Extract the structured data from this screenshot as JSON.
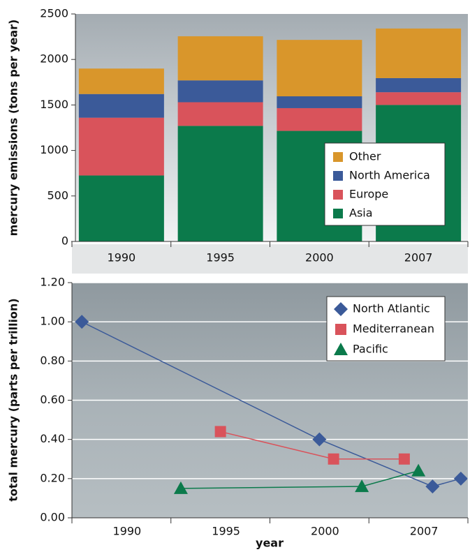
{
  "chart_data": [
    {
      "type": "bar",
      "stacked": true,
      "ylabel": "mercury emissions (tons per year)",
      "categories": [
        "1990",
        "1995",
        "2000",
        "2007"
      ],
      "series": [
        {
          "name": "Asia",
          "color": "#0b7a4b",
          "values": [
            725,
            1270,
            1215,
            1500
          ]
        },
        {
          "name": "Europe",
          "color": "#d9535b",
          "values": [
            635,
            260,
            250,
            140
          ]
        },
        {
          "name": "North America",
          "color": "#3b5a99",
          "values": [
            260,
            240,
            130,
            155
          ]
        },
        {
          "name": "Other",
          "color": "#d9962b",
          "values": [
            280,
            485,
            620,
            545
          ]
        }
      ],
      "ylim": [
        0,
        2500
      ],
      "yticks": [
        0,
        500,
        1000,
        1500,
        2000,
        2500
      ],
      "legend": "lower right"
    },
    {
      "type": "line",
      "ylabel": "total mercury (parts per trillion)",
      "xlabel": "year",
      "series": [
        {
          "name": "North Atlantic",
          "color": "#3b5a99",
          "marker": "diamond",
          "x": [
            1988,
            2000,
            2008,
            2010
          ],
          "values": [
            1.0,
            0.4,
            0.16,
            0.2
          ]
        },
        {
          "name": "Mediterranean",
          "color": "#d9535b",
          "marker": "square",
          "x": [
            1995,
            2001,
            2006
          ],
          "values": [
            0.44,
            0.3,
            0.3
          ]
        },
        {
          "name": "Pacific",
          "color": "#0b7a4b",
          "marker": "triangle",
          "x": [
            1993,
            2003,
            2007
          ],
          "values": [
            0.15,
            0.16,
            0.24
          ]
        }
      ],
      "xlim": [
        1987.5,
        2010.5
      ],
      "xticks": [
        1990,
        1995,
        2000,
        2007
      ],
      "ylim": [
        0,
        1.2
      ],
      "yticks": [
        {
          "value": 0,
          "label": "0.00"
        },
        {
          "value": 0.2,
          "label": "0.20"
        },
        {
          "value": 0.4,
          "label": "0.40"
        },
        {
          "value": 0.6,
          "label": "0.60"
        },
        {
          "value": 0.8,
          "label": "0.80"
        },
        {
          "value": 1.0,
          "label": "1.00"
        },
        {
          "value": 1.2,
          "label": "1.20"
        }
      ],
      "grid": true,
      "legend": "upper right"
    }
  ]
}
